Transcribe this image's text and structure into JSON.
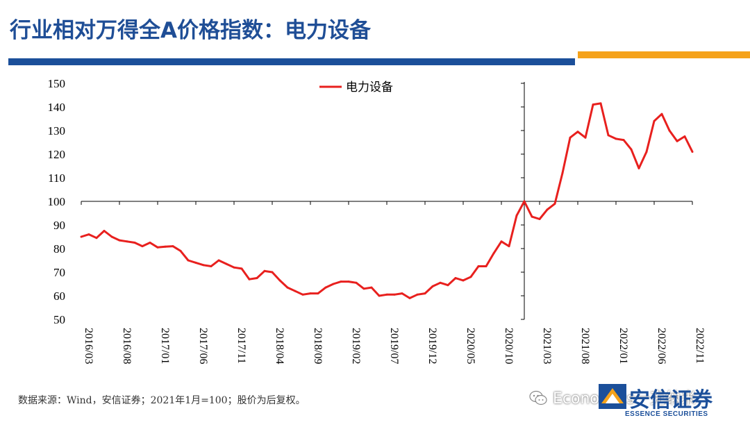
{
  "header": {
    "title": "行业相对万得全A价格指数：电力设备",
    "colors": {
      "title": "#1f4e96",
      "bar_blue": "#1b4f9a",
      "bar_orange": "#f5a21a"
    }
  },
  "chart_data": {
    "type": "line",
    "title": "",
    "xlabel": "",
    "ylabel": "",
    "ylim": [
      50,
      150
    ],
    "yticks": [
      "150",
      "140",
      "130",
      "120",
      "110",
      "100",
      "90",
      "80",
      "70",
      "60",
      "50"
    ],
    "x_tick_labels": [
      "2016/03",
      "2016/08",
      "2017/01",
      "2017/06",
      "2017/11",
      "2018/04",
      "2018/09",
      "2019/02",
      "2019/07",
      "2019/12",
      "2020/05",
      "2020/10",
      "2021/03",
      "2021/08",
      "2022/01",
      "2022/06",
      "2022/11"
    ],
    "x_axis_crosses_at": 100,
    "y_axis_at": "2021/01",
    "grid": false,
    "legend_position": "top-center",
    "series": [
      {
        "name": "电力设备",
        "color": "#e8201e",
        "x": [
          "2016/03",
          "2016/04",
          "2016/05",
          "2016/06",
          "2016/07",
          "2016/08",
          "2016/09",
          "2016/10",
          "2016/11",
          "2016/12",
          "2017/01",
          "2017/02",
          "2017/03",
          "2017/04",
          "2017/05",
          "2017/06",
          "2017/07",
          "2017/08",
          "2017/09",
          "2017/10",
          "2017/11",
          "2017/12",
          "2018/01",
          "2018/02",
          "2018/03",
          "2018/04",
          "2018/05",
          "2018/06",
          "2018/07",
          "2018/08",
          "2018/09",
          "2018/10",
          "2018/11",
          "2018/12",
          "2019/01",
          "2019/02",
          "2019/03",
          "2019/04",
          "2019/05",
          "2019/06",
          "2019/07",
          "2019/08",
          "2019/09",
          "2019/10",
          "2019/11",
          "2019/12",
          "2020/01",
          "2020/02",
          "2020/03",
          "2020/04",
          "2020/05",
          "2020/06",
          "2020/07",
          "2020/08",
          "2020/09",
          "2020/10",
          "2020/11",
          "2020/12",
          "2021/01",
          "2021/02",
          "2021/03",
          "2021/04",
          "2021/05",
          "2021/06",
          "2021/07",
          "2021/08",
          "2021/09",
          "2021/10",
          "2021/11",
          "2021/12",
          "2022/01",
          "2022/02",
          "2022/03",
          "2022/04",
          "2022/05",
          "2022/06",
          "2022/07",
          "2022/08",
          "2022/09",
          "2022/10",
          "2022/11"
        ],
        "values": [
          85,
          86,
          84.5,
          87.5,
          85,
          83.5,
          83,
          82.5,
          81,
          82.5,
          80.5,
          80.8,
          81,
          79,
          75,
          74,
          73,
          72.5,
          75,
          73.5,
          72,
          71.5,
          67,
          67.5,
          70.5,
          70,
          66.5,
          63.5,
          62,
          60.5,
          61,
          61,
          63.5,
          65,
          66,
          66,
          65.5,
          63,
          63.5,
          60,
          60.5,
          60.5,
          61,
          59,
          60.5,
          61,
          64,
          65.5,
          64.5,
          67.5,
          66.5,
          68,
          72.5,
          72.5,
          78,
          83,
          81,
          94,
          100,
          93.5,
          92.5,
          96.5,
          99,
          112,
          127,
          129.5,
          127,
          141,
          141.5,
          128,
          126.5,
          126,
          122,
          114,
          121,
          134,
          137,
          130,
          125.5,
          127.5,
          121
        ]
      }
    ]
  },
  "footer": {
    "source": "数据来源：Wind，安信证券；2021年1月=100；股价为后复权。",
    "watermark": "Economics一克纳米"
  },
  "logo": {
    "cn": "安信证券",
    "en": "ESSENCE SECURITIES"
  }
}
